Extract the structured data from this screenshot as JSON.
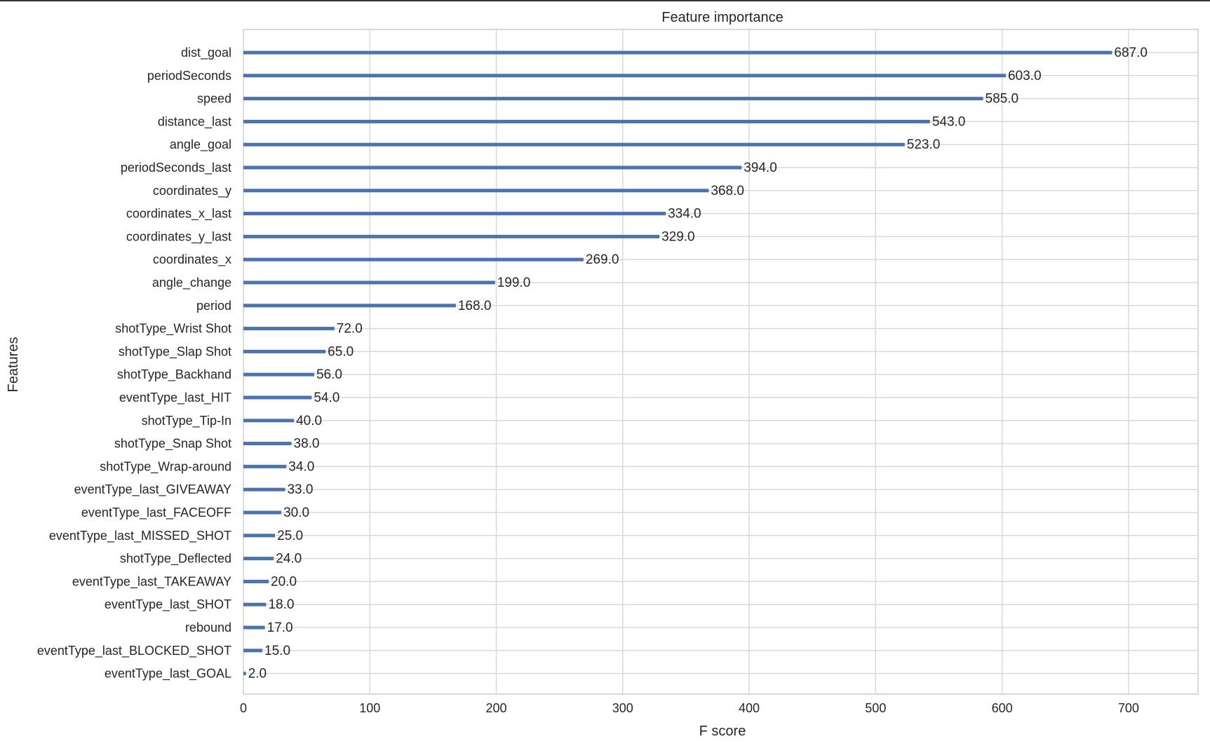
{
  "chart_data": {
    "type": "bar",
    "orientation": "horizontal",
    "title": "Feature importance",
    "xlabel": "F score",
    "ylabel": "Features",
    "xlim": [
      0,
      755
    ],
    "xticks": [
      0,
      100,
      200,
      300,
      400,
      500,
      600,
      700
    ],
    "grid": true,
    "bar_color": "#4c72b0",
    "categories": [
      "dist_goal",
      "periodSeconds",
      "speed",
      "distance_last",
      "angle_goal",
      "periodSeconds_last",
      "coordinates_y",
      "coordinates_x_last",
      "coordinates_y_last",
      "coordinates_x",
      "angle_change",
      "period",
      "shotType_Wrist Shot",
      "shotType_Slap Shot",
      "shotType_Backhand",
      "eventType_last_HIT",
      "shotType_Tip-In",
      "shotType_Snap Shot",
      "shotType_Wrap-around",
      "eventType_last_GIVEAWAY",
      "eventType_last_FACEOFF",
      "eventType_last_MISSED_SHOT",
      "shotType_Deflected",
      "eventType_last_TAKEAWAY",
      "eventType_last_SHOT",
      "rebound",
      "eventType_last_BLOCKED_SHOT",
      "eventType_last_GOAL"
    ],
    "values": [
      687,
      603,
      585,
      543,
      523,
      394,
      368,
      334,
      329,
      269,
      199,
      168,
      72,
      65,
      56,
      54,
      40,
      38,
      34,
      33,
      30,
      25,
      24,
      20,
      18,
      17,
      15,
      2
    ],
    "value_labels": [
      "687.0",
      "603.0",
      "585.0",
      "543.0",
      "523.0",
      "394.0",
      "368.0",
      "334.0",
      "329.0",
      "269.0",
      "199.0",
      "168.0",
      "72.0",
      "65.0",
      "56.0",
      "54.0",
      "40.0",
      "38.0",
      "34.0",
      "33.0",
      "30.0",
      "25.0",
      "24.0",
      "20.0",
      "18.0",
      "17.0",
      "15.0",
      "2.0"
    ]
  }
}
